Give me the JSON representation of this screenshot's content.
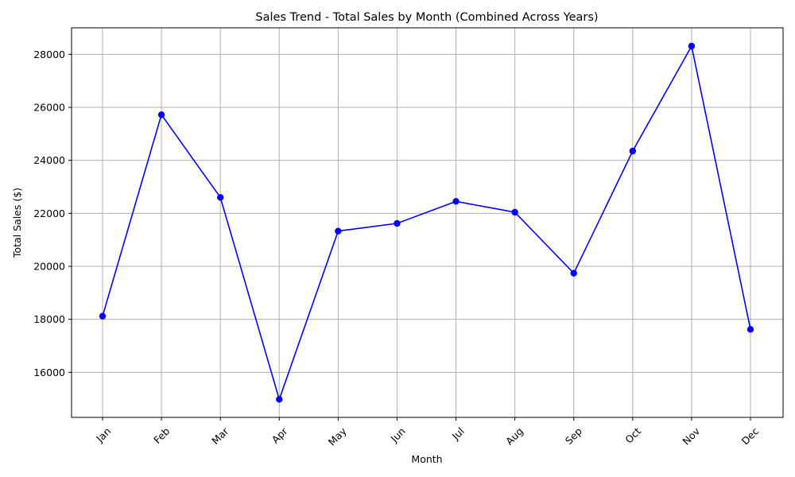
{
  "chart_data": {
    "type": "line",
    "title": "Sales Trend - Total Sales by Month (Combined Across Years)",
    "xlabel": "Month",
    "ylabel": "Total Sales ($)",
    "categories": [
      "Jan",
      "Feb",
      "Mar",
      "Apr",
      "May",
      "Jun",
      "Jul",
      "Aug",
      "Sep",
      "Oct",
      "Nov",
      "Dec"
    ],
    "series": [
      {
        "values": [
          18120,
          25720,
          22600,
          14980,
          21330,
          21620,
          22450,
          22040,
          19740,
          24350,
          28310,
          17620
        ],
        "color": "#0000ff",
        "marker": "circle"
      }
    ],
    "ylim": [
      14300,
      29000
    ],
    "yticks": [
      16000,
      18000,
      20000,
      22000,
      24000,
      26000,
      28000
    ],
    "ytick_labels": [
      "16000",
      "18000",
      "20000",
      "22000",
      "24000",
      "26000",
      "28000"
    ],
    "grid": true,
    "xtick_rotation": 45
  }
}
